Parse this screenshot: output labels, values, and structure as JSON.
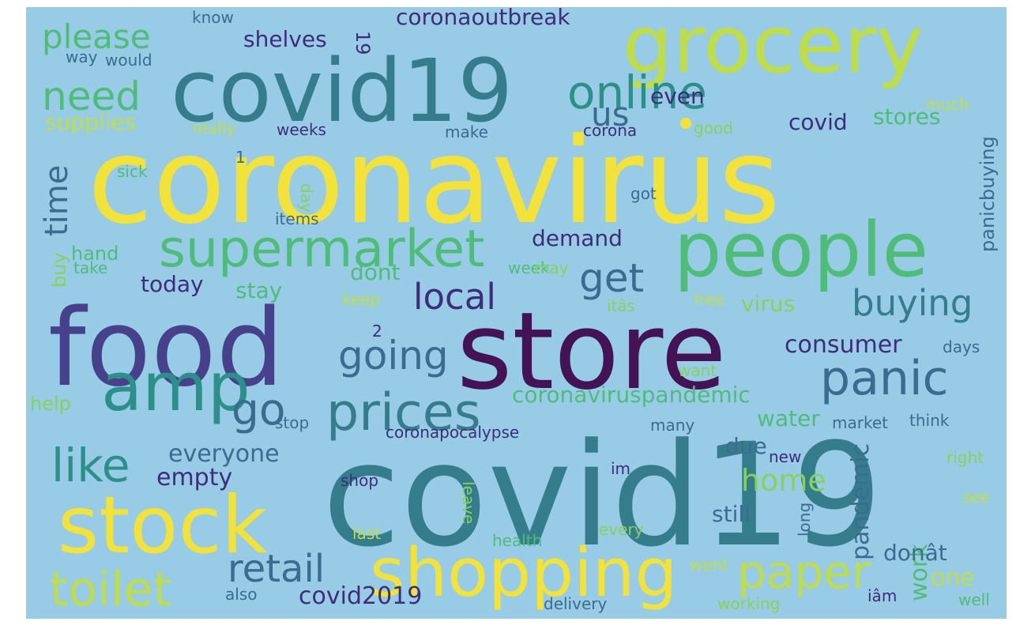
{
  "background_color": "#98cbe6",
  "palette": {
    "yellow": "#f3e23a",
    "lime": "#bedd48",
    "lightgreen": "#86d35c",
    "green": "#4fbd79",
    "teal": "#2d8f8a",
    "tealdark": "#357d8c",
    "blue": "#3b6b8e",
    "indigo": "#46418a",
    "purple": "#3f2c7a",
    "darkpurple": "#441356"
  },
  "words": [
    {
      "text": "coronavirus",
      "color": "yellow"
    },
    {
      "text": "covid19",
      "color": "tealdark"
    },
    {
      "text": "covid19",
      "color": "tealdark"
    },
    {
      "text": "grocery",
      "color": "lime"
    },
    {
      "text": "food",
      "color": "indigo"
    },
    {
      "text": "store",
      "color": "darkpurple"
    },
    {
      "text": "people",
      "color": "green"
    },
    {
      "text": "stock",
      "color": "yellow"
    },
    {
      "text": "shopping",
      "color": "yellow"
    },
    {
      "text": "amp",
      "color": "teal"
    },
    {
      "text": "supermarket",
      "color": "green"
    },
    {
      "text": "prices",
      "color": "tealdark"
    },
    {
      "text": "online",
      "color": "teal"
    },
    {
      "text": "panic",
      "color": "blue"
    },
    {
      "text": "toilet",
      "color": "lime"
    },
    {
      "text": "paper",
      "color": "lime"
    },
    {
      "text": "going",
      "color": "blue"
    },
    {
      "text": "buying",
      "color": "tealdark"
    },
    {
      "text": "like",
      "color": "teal"
    },
    {
      "text": "retail",
      "color": "blue"
    },
    {
      "text": "go",
      "color": "blue"
    },
    {
      "text": "local",
      "color": "purple"
    },
    {
      "text": "get",
      "color": "blue"
    },
    {
      "text": "need",
      "color": "green"
    },
    {
      "text": "please",
      "color": "green"
    },
    {
      "text": "time",
      "color": "blue"
    },
    {
      "text": "us",
      "color": "blue"
    },
    {
      "text": "home",
      "color": "lightgreen"
    },
    {
      "text": "coronaviruspandemic",
      "color": "green"
    },
    {
      "text": "covid2019",
      "color": "purple"
    },
    {
      "text": "everyone",
      "color": "blue"
    },
    {
      "text": "empty",
      "color": "purple"
    },
    {
      "text": "consumer",
      "color": "purple"
    },
    {
      "text": "coronaoutbreak",
      "color": "purple"
    },
    {
      "text": "shelves",
      "color": "purple"
    },
    {
      "text": "19",
      "color": "purple"
    },
    {
      "text": "supplies",
      "color": "lime"
    },
    {
      "text": "stores",
      "color": "green"
    },
    {
      "text": "covid",
      "color": "purple"
    },
    {
      "text": "even",
      "color": "purple"
    },
    {
      "text": "demand",
      "color": "purple"
    },
    {
      "text": "today",
      "color": "purple"
    },
    {
      "text": "stay",
      "color": "green"
    },
    {
      "text": "dont",
      "color": "green"
    },
    {
      "text": "virus",
      "color": "lightgreen"
    },
    {
      "text": "water",
      "color": "green"
    },
    {
      "text": "due",
      "color": "blue"
    },
    {
      "text": "still",
      "color": "blue"
    },
    {
      "text": "pandemic",
      "color": "blue"
    },
    {
      "text": "work",
      "color": "green"
    },
    {
      "text": "one",
      "color": "lime"
    },
    {
      "text": "donât",
      "color": "blue"
    },
    {
      "text": "panicbuying",
      "color": "blue"
    },
    {
      "text": "hand",
      "color": "green"
    },
    {
      "text": "buy",
      "color": "lightgreen"
    },
    {
      "text": "help",
      "color": "lightgreen"
    },
    {
      "text": "coronapocalypse",
      "color": "purple"
    },
    {
      "text": "corona",
      "color": "purple"
    },
    {
      "text": "weeks",
      "color": "purple"
    },
    {
      "text": "make",
      "color": "blue"
    },
    {
      "text": "really",
      "color": "lime"
    },
    {
      "text": "good",
      "color": "lightgreen"
    },
    {
      "text": "much",
      "color": "lime"
    },
    {
      "text": "would",
      "color": "blue"
    },
    {
      "text": "way",
      "color": "blue"
    },
    {
      "text": "know",
      "color": "blue"
    },
    {
      "text": "sick",
      "color": "green"
    },
    {
      "text": "1",
      "color": "blue"
    },
    {
      "text": "day",
      "color": "lightgreen"
    },
    {
      "text": "got",
      "color": "blue"
    },
    {
      "text": "items",
      "color": "blue"
    },
    {
      "text": "take",
      "color": "green"
    },
    {
      "text": "week",
      "color": "green"
    },
    {
      "text": "may",
      "color": "lightgreen"
    },
    {
      "text": "keep",
      "color": "lime"
    },
    {
      "text": "itâs",
      "color": "lightgreen"
    },
    {
      "text": "free",
      "color": "lime"
    },
    {
      "text": "2",
      "color": "purple"
    },
    {
      "text": "days",
      "color": "blue"
    },
    {
      "text": "want",
      "color": "lightgreen"
    },
    {
      "text": "stop",
      "color": "blue"
    },
    {
      "text": "market",
      "color": "blue"
    },
    {
      "text": "think",
      "color": "blue"
    },
    {
      "text": "many",
      "color": "blue"
    },
    {
      "text": "new",
      "color": "purple"
    },
    {
      "text": "im",
      "color": "purple"
    },
    {
      "text": "right",
      "color": "lightgreen"
    },
    {
      "text": "shop",
      "color": "purple"
    },
    {
      "text": "leave",
      "color": "lightgreen"
    },
    {
      "text": "see",
      "color": "lime"
    },
    {
      "text": "long",
      "color": "blue"
    },
    {
      "text": "last",
      "color": "lime"
    },
    {
      "text": "health",
      "color": "green"
    },
    {
      "text": "every",
      "color": "lightgreen"
    },
    {
      "text": "went",
      "color": "lime"
    },
    {
      "text": "also",
      "color": "blue"
    },
    {
      "text": "delivery",
      "color": "blue"
    },
    {
      "text": "working",
      "color": "lightgreen"
    },
    {
      "text": "iâm",
      "color": "purple"
    },
    {
      "text": "well",
      "color": "green"
    }
  ]
}
